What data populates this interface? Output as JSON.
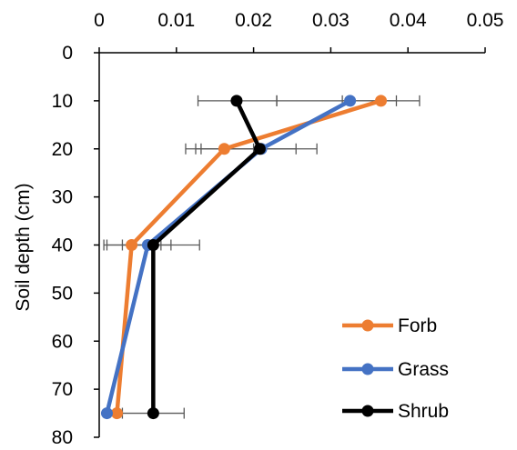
{
  "chart_data": {
    "type": "line",
    "orientation": "depth-profile",
    "title": "",
    "xlabel": "",
    "ylabel": "Soil depth (cm)",
    "xlim": [
      0,
      0.05
    ],
    "ylim": [
      0,
      80
    ],
    "y_reversed": true,
    "x_axis_position": "top",
    "x_ticks": [
      0,
      0.01,
      0.02,
      0.03,
      0.04,
      0.05
    ],
    "x_tick_labels": [
      "0",
      "0.01",
      "0.02",
      "0.03",
      "0.04",
      "0.05"
    ],
    "y_ticks": [
      0,
      10,
      20,
      30,
      40,
      50,
      60,
      70,
      80
    ],
    "y_tick_labels": [
      "0",
      "10",
      "20",
      "30",
      "40",
      "50",
      "60",
      "70",
      "80"
    ],
    "grid": false,
    "legend_position": "bottom-right",
    "series": [
      {
        "name": "Forb",
        "color": "#ED7D31",
        "depth": [
          10,
          20,
          40,
          75
        ],
        "x": [
          0.0365,
          0.0162,
          0.0042,
          0.0023
        ],
        "error_low": [
          0.0315,
          0.0125,
          0.0006,
          0.0023
        ],
        "error_high": [
          0.0415,
          0.02,
          0.008,
          0.0023
        ]
      },
      {
        "name": "Grass",
        "color": "#4472C4",
        "depth": [
          10,
          20,
          40,
          75
        ],
        "x": [
          0.0325,
          0.021,
          0.0063,
          0.001
        ],
        "error_low": [
          0.023,
          0.0132,
          0.003,
          0.001
        ],
        "error_high": [
          0.0385,
          0.0282,
          0.0093,
          0.001
        ]
      },
      {
        "name": "Shrub",
        "color": "#000000",
        "depth": [
          10,
          20,
          40,
          75
        ],
        "x": [
          0.0178,
          0.0208,
          0.007,
          0.007
        ],
        "error_low": [
          0.0128,
          0.0112,
          0.001,
          0.003
        ],
        "error_high": [
          0.023,
          0.0255,
          0.013,
          0.011
        ]
      }
    ]
  }
}
